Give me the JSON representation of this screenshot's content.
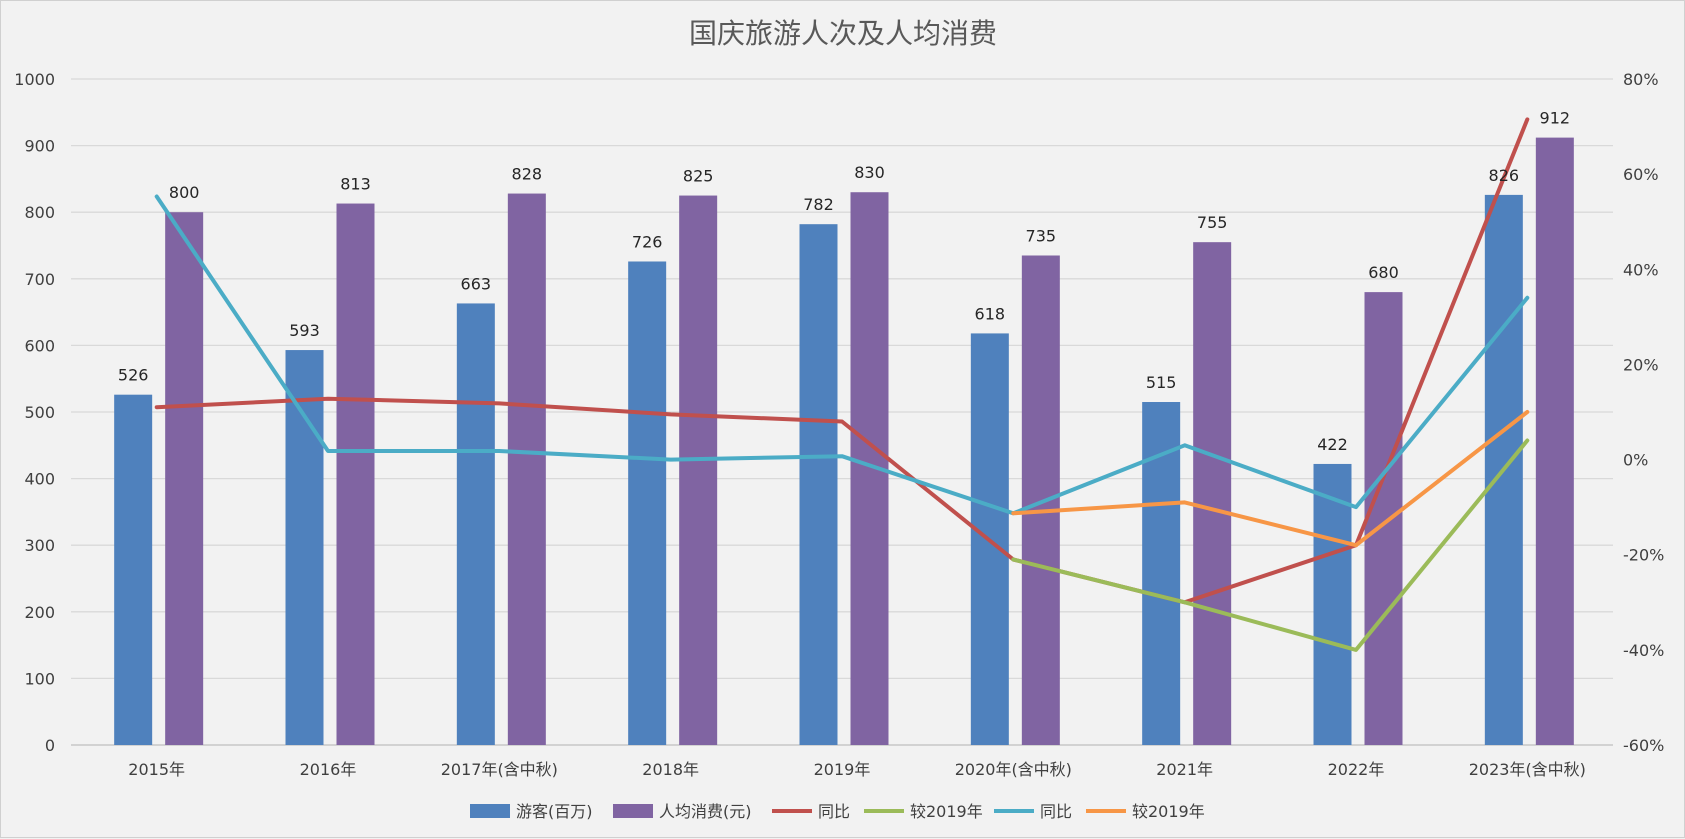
{
  "chart_data": {
    "type": "bar",
    "title": "国庆旅游人次及人均消费",
    "categories": [
      "2015年",
      "2016年",
      "2017年(含中秋)",
      "2018年",
      "2019年",
      "2020年(含中秋)",
      "2021年",
      "2022年",
      "2023年(含中秋)"
    ],
    "ylim": [
      0,
      1000
    ],
    "y_ticks": [
      "0",
      "100",
      "200",
      "300",
      "400",
      "500",
      "600",
      "700",
      "800",
      "900",
      "1000"
    ],
    "y2lim": [
      -0.6,
      0.8
    ],
    "y2_ticks": [
      "-60%",
      "-40%",
      "-20%",
      "0%",
      "20%",
      "40%",
      "60%",
      "80%"
    ],
    "bar_series": [
      {
        "name": "游客(百万)",
        "color": "#4f81bd",
        "values": [
          526,
          593,
          663,
          726,
          782,
          618,
          515,
          422,
          826
        ]
      },
      {
        "name": "人均消费(元)",
        "color": "#8064a2",
        "values": [
          800,
          813,
          828,
          825,
          830,
          735,
          755,
          680,
          912
        ]
      }
    ],
    "line_series": [
      {
        "name": "同比",
        "color": "#c0504d",
        "values": [
          0.11,
          0.128,
          0.118,
          0.095,
          0.08,
          -0.21,
          -0.3,
          -0.18,
          0.715
        ]
      },
      {
        "name": "较2019年",
        "color": "#9bbb59",
        "values": [
          null,
          null,
          null,
          null,
          null,
          -0.21,
          -0.3,
          -0.4,
          0.04
        ]
      },
      {
        "name": "同比",
        "color": "#4bacc6",
        "values": [
          0.553,
          0.018,
          0.018,
          0.0,
          0.007,
          -0.113,
          0.03,
          -0.1,
          0.34
        ]
      },
      {
        "name": "较2019年",
        "color": "#f79646",
        "values": [
          null,
          null,
          null,
          null,
          null,
          -0.113,
          -0.09,
          -0.18,
          0.1
        ]
      }
    ],
    "legend": [
      "游客(百万)",
      "人均消费(元)",
      "同比",
      "较2019年",
      "同比",
      "较2019年"
    ],
    "legend_position": "bottom",
    "grid": true
  }
}
